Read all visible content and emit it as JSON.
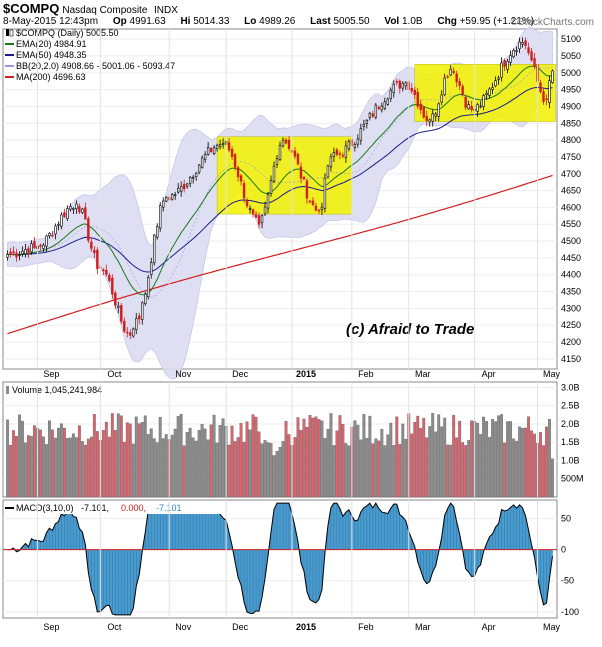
{
  "header": {
    "symbol": "$COMPQ",
    "name": "Nasdaq Composite",
    "exchange": "INDX",
    "date_time": "8-May-2015 12:43pm",
    "open_label": "Op",
    "open": "4991.63",
    "high_label": "Hi",
    "high": "5014.33",
    "low_label": "Lo",
    "low": "4989.26",
    "last_label": "Last",
    "last": "5005.50",
    "vol_label": "Vol",
    "vol": "1.0B",
    "chg_label": "Chg",
    "chg": "+59.95 (+1.21%)",
    "brand": "©StockCharts.com"
  },
  "colors": {
    "up_candle": "#000000",
    "down_candle": "#d11d1d",
    "ema20": "#1a7a1a",
    "ema50": "#1c1c8c",
    "bb_band": "#dcdcf2",
    "ma200": "#d21d1d",
    "highlight": "#f2f200",
    "volume_up": "#8c8c8c",
    "volume_down": "#d9646e",
    "macd_fill": "#2c8ac6",
    "macd_line": "#000000",
    "signal_line": "#d21d1d",
    "histogram": "#3a90c8"
  },
  "chart_data": [
    {
      "type": "candlestick",
      "panel": "price",
      "legend": [
        {
          "label": "$COMPQ (Daily) 5005.50",
          "icon": "candle-icon"
        },
        {
          "label": "EMA(20) 4984.91",
          "color": "#1a7a1a"
        },
        {
          "label": "EMA(50) 4948.35",
          "color": "#1c1c8c"
        },
        {
          "label": "BB(20,2.0) 4908.66 - 5001.06 - 5093.47",
          "color": "#9a9ad8"
        },
        {
          "label": "MA(200) 4696.63",
          "color": "#d21d1d"
        }
      ],
      "y_ticks": [
        5100,
        5050,
        5000,
        4950,
        4900,
        4850,
        4800,
        4750,
        4700,
        4650,
        4600,
        4550,
        4500,
        4450,
        4400,
        4350,
        4300,
        4250,
        4200,
        4150
      ],
      "ylim": [
        4120,
        5130
      ],
      "x_labels": [
        "Sep",
        "Oct",
        "Nov",
        "Dec",
        "2015",
        "Feb",
        "Mar",
        "Apr",
        "May"
      ],
      "key_points": [
        {
          "date": "2014-08-29",
          "close": 4480
        },
        {
          "date": "2014-09-19",
          "close": 4610
        },
        {
          "date": "2014-10-01",
          "close": 4420
        },
        {
          "date": "2014-10-15",
          "close": 4220
        },
        {
          "date": "2014-10-17",
          "close": 4270
        },
        {
          "date": "2014-10-31",
          "close": 4630
        },
        {
          "date": "2014-11-28",
          "close": 4790
        },
        {
          "date": "2014-12-16",
          "close": 4550
        },
        {
          "date": "2014-12-29",
          "close": 4800
        },
        {
          "date": "2015-01-15",
          "close": 4590
        },
        {
          "date": "2015-01-22",
          "close": 4750
        },
        {
          "date": "2015-02-27",
          "close": 4970
        },
        {
          "date": "2015-03-11",
          "close": 4860
        },
        {
          "date": "2015-03-20",
          "close": 5010
        },
        {
          "date": "2015-03-31",
          "close": 4890
        },
        {
          "date": "2015-04-24",
          "close": 5090
        },
        {
          "date": "2015-05-06",
          "close": 4920
        },
        {
          "date": "2015-05-08",
          "close": 5005.5
        }
      ],
      "annotations": [
        {
          "type": "highlight-box",
          "from": "2014-11-26",
          "to": "2015-01-30",
          "low": 4580,
          "high": 4810
        },
        {
          "type": "highlight-box",
          "from": "2015-03-05",
          "to": "2015-05-08",
          "low": 4855,
          "high": 5025
        },
        {
          "type": "text",
          "text": "(c) Afraid to Trade"
        }
      ]
    },
    {
      "type": "bar",
      "panel": "volume",
      "title": "Volume 1,045,241,984",
      "y_ticks": [
        "3.0B",
        "2.5B",
        "2.0B",
        "1.5B",
        "1.0B",
        "500M"
      ],
      "y_values": [
        3.0,
        2.5,
        2.0,
        1.5,
        1.0,
        0.5
      ],
      "ylim": [
        0,
        3.15
      ],
      "typical_range": [
        1.4,
        2.3
      ],
      "peak": {
        "date": "2014-12-19",
        "value": 2.95
      }
    },
    {
      "type": "line",
      "panel": "macd",
      "title": "MACD(3,10,0)",
      "values_legend": [
        {
          "label": "-7.101",
          "color": "#000000"
        },
        {
          "label": "0.000",
          "color": "#d21d1d"
        },
        {
          "label": "-7.101",
          "color": "#2c8ac6"
        }
      ],
      "y_ticks": [
        50,
        0,
        -50,
        -100
      ],
      "ylim": [
        -110,
        80
      ],
      "x_labels": [
        "Sep",
        "Oct",
        "Nov",
        "Dec",
        "2015",
        "Feb",
        "Mar",
        "Apr",
        "May"
      ]
    }
  ],
  "watermark": "(c) Afraid to Trade"
}
